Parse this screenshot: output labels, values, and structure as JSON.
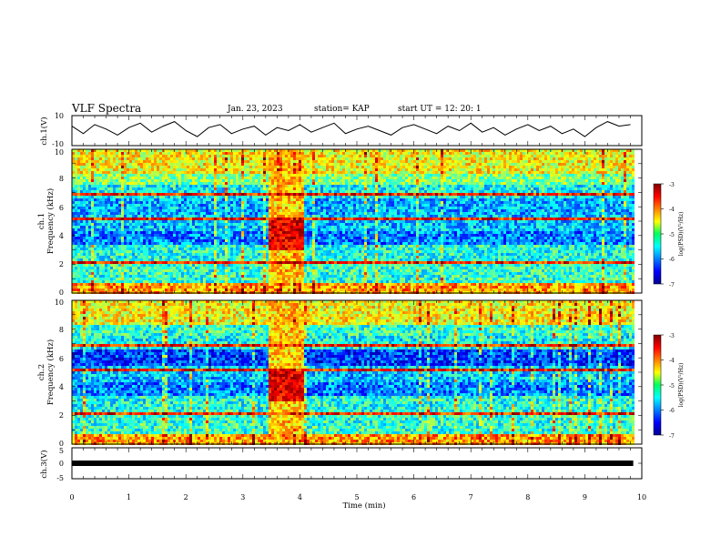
{
  "header": {
    "title": "VLF Spectra",
    "date": "Jan. 23, 2023",
    "station": "station= KAP",
    "start": "start UT =  12: 20: 1"
  },
  "chart_data": [
    {
      "type": "line",
      "id": "ch1-waveform",
      "ylabel": "ch.1(V)",
      "ylim": [
        -10,
        10
      ],
      "ytick_labels": [
        "10",
        "-10"
      ],
      "x": [
        0,
        0.2,
        0.4,
        0.6,
        0.8,
        1.0,
        1.2,
        1.4,
        1.6,
        1.8,
        2.0,
        2.2,
        2.4,
        2.6,
        2.8,
        3.0,
        3.2,
        3.4,
        3.6,
        3.8,
        4.0,
        4.2,
        4.4,
        4.6,
        4.8,
        5.0,
        5.2,
        5.4,
        5.6,
        5.8,
        6.0,
        6.2,
        6.4,
        6.6,
        6.8,
        7.0,
        7.2,
        7.4,
        7.6,
        7.8,
        8.0,
        8.2,
        8.4,
        8.6,
        8.8,
        9.0,
        9.2,
        9.4,
        9.6,
        9.8
      ],
      "y": [
        3,
        -2,
        4,
        1,
        -3,
        2,
        5,
        -1,
        3,
        6,
        0,
        -4,
        2,
        4,
        -2,
        1,
        3,
        -3,
        2,
        0,
        4,
        -1,
        2,
        5,
        -2,
        1,
        3,
        0,
        -3,
        2,
        4,
        1,
        -2,
        3,
        0,
        5,
        -1,
        2,
        -3,
        1,
        4,
        0,
        3,
        -2,
        1,
        -4,
        2,
        6,
        3,
        4
      ],
      "xlim": [
        0,
        10
      ]
    },
    {
      "type": "heatmap",
      "id": "ch1-spectrogram",
      "ylabel": "ch.1",
      "ylabel2": "Frequency (kHz)",
      "ylim": [
        0,
        10
      ],
      "ytick_labels": [
        "0",
        "2",
        "4",
        "6",
        "8",
        "10"
      ],
      "xlim": [
        0,
        9.85
      ],
      "colorbar": {
        "min": -7,
        "max": -3,
        "tick_labels": [
          "-3",
          "-4",
          "-5",
          "-6",
          "-7"
        ],
        "label": "log(PSD)(V²/Hz)"
      }
    },
    {
      "type": "heatmap",
      "id": "ch2-spectrogram",
      "ylabel": "ch.2",
      "ylabel2": "Frequency (kHz)",
      "ylim": [
        0,
        10
      ],
      "ytick_labels": [
        "0",
        "2",
        "4",
        "6",
        "8",
        "10"
      ],
      "xlim": [
        0,
        9.85
      ],
      "colorbar": {
        "min": -7,
        "max": -3,
        "tick_labels": [
          "-3",
          "-4",
          "-5",
          "-6",
          "-7"
        ],
        "label": "log(PSD)(V²/Hz)"
      }
    },
    {
      "type": "line",
      "id": "ch3-waveform",
      "ylabel": "ch.3(V)",
      "ylim": [
        -5,
        5
      ],
      "ytick_labels": [
        "5",
        "0",
        "-5"
      ],
      "x": [
        0,
        9.85
      ],
      "y": [
        0,
        0
      ],
      "xlim": [
        0,
        10
      ]
    }
  ],
  "xaxis": {
    "label": "Time (min)",
    "tick_labels": [
      "0",
      "1",
      "2",
      "3",
      "4",
      "5",
      "6",
      "7",
      "8",
      "9",
      "10"
    ],
    "range": [
      0,
      10
    ]
  },
  "colors": {
    "jet_low": "#00008f",
    "jet_high": "#800000",
    "trace": "#000000"
  }
}
